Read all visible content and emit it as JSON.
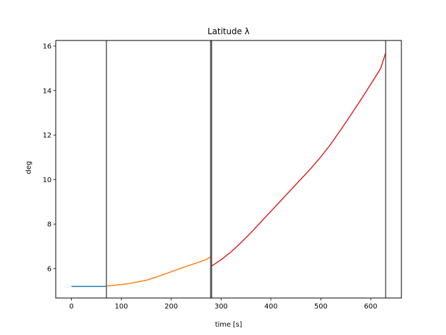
{
  "chart_data": {
    "type": "line",
    "title": "Latitude λ",
    "xlabel": "time [s]",
    "ylabel": "deg",
    "xlim": [
      -31.5,
      661.5
    ],
    "ylim": [
      4.68,
      16.25
    ],
    "xticks": [
      0,
      100,
      200,
      300,
      400,
      500,
      600
    ],
    "yticks": [
      6,
      8,
      10,
      12,
      14,
      16
    ],
    "grid": false,
    "legend": "none",
    "vlines": [
      70,
      279,
      281,
      630
    ],
    "series": [
      {
        "color": "#1f77b4",
        "x": [
          0,
          20,
          40,
          60,
          70
        ],
        "y": [
          5.2,
          5.2,
          5.2,
          5.2,
          5.2
        ]
      },
      {
        "color": "#ff7f0e",
        "x": [
          70,
          90,
          110,
          130,
          150,
          170,
          190,
          210,
          230,
          250,
          270,
          280
        ],
        "y": [
          5.22,
          5.26,
          5.31,
          5.39,
          5.48,
          5.62,
          5.78,
          5.94,
          6.1,
          6.25,
          6.41,
          6.54
        ]
      },
      {
        "color": "#d62728",
        "x": [
          280,
          300,
          320,
          340,
          360,
          380,
          400,
          420,
          440,
          460,
          480,
          500,
          520,
          540,
          560,
          580,
          600,
          620,
          630
        ],
        "y": [
          6.1,
          6.4,
          6.75,
          7.17,
          7.62,
          8.1,
          8.58,
          9.06,
          9.54,
          10.02,
          10.5,
          11.02,
          11.6,
          12.24,
          12.9,
          13.58,
          14.28,
          15.0,
          15.7
        ]
      }
    ]
  }
}
